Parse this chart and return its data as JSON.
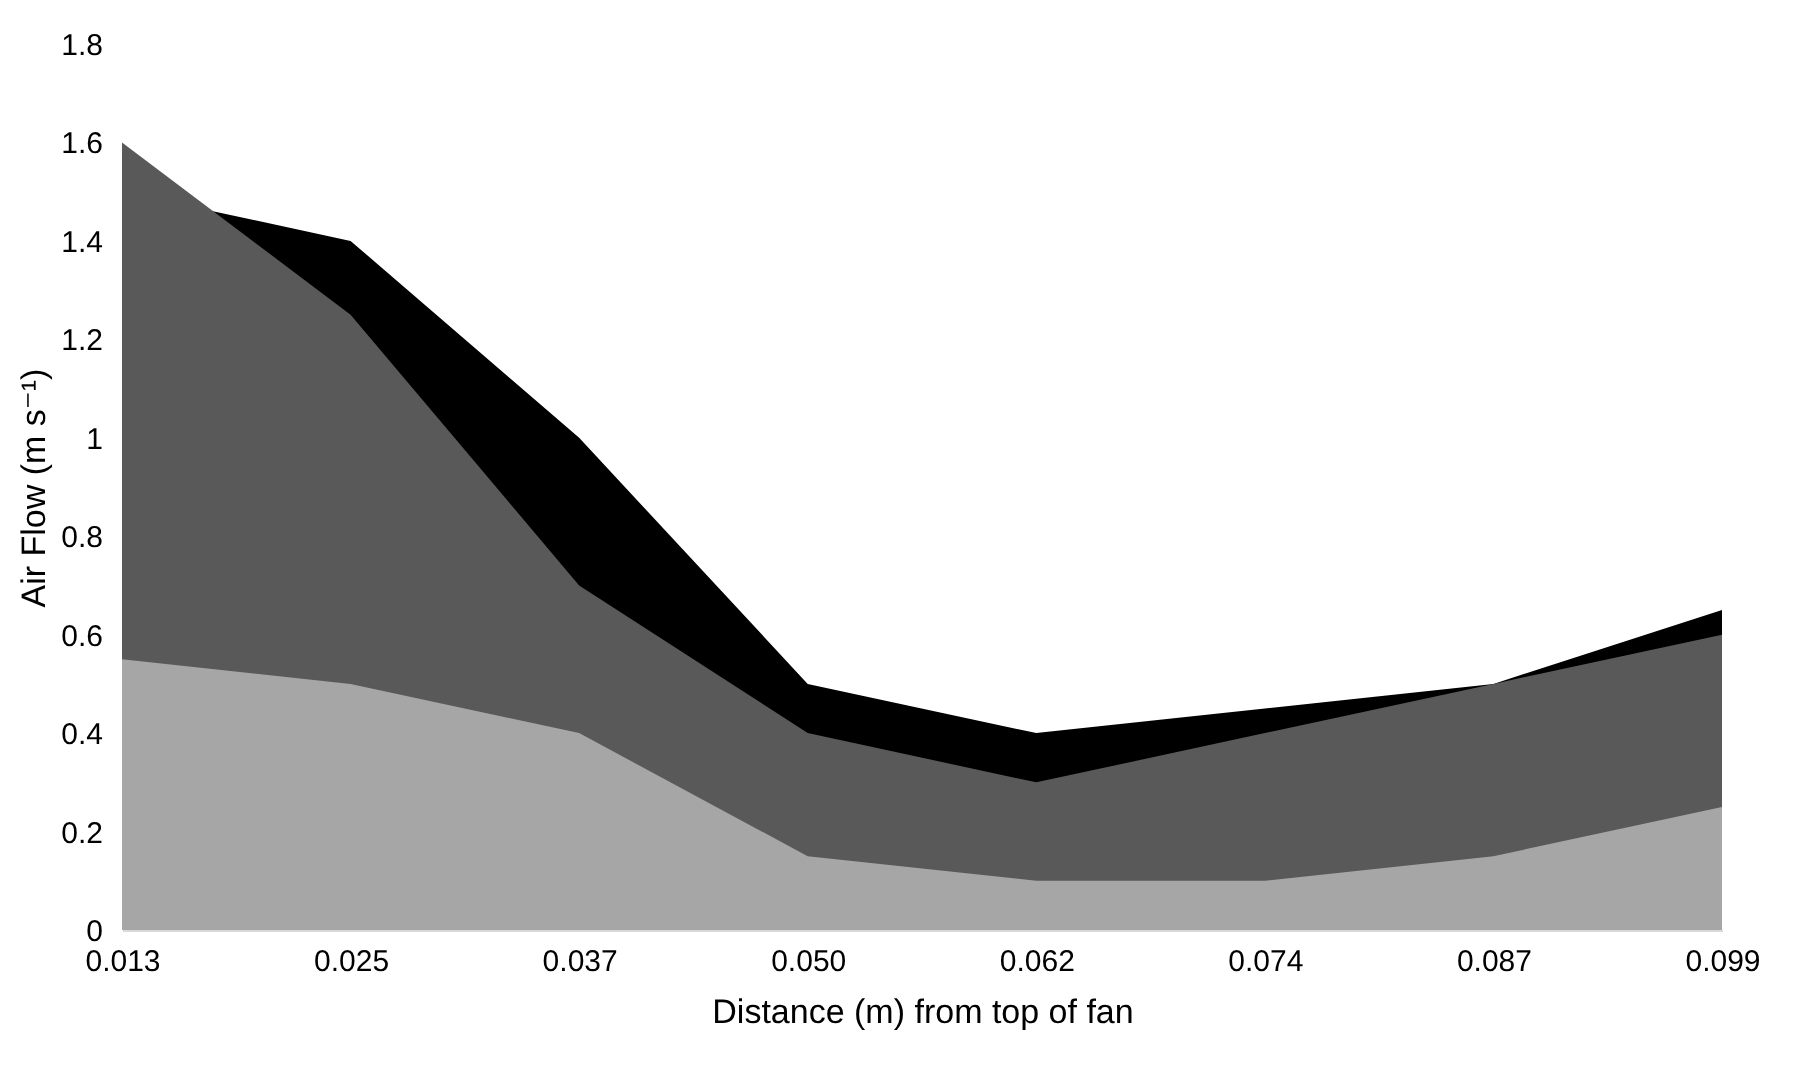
{
  "chart_data": {
    "type": "area",
    "xlabel": "Distance (m) from top of fan",
    "ylabel": "Air Flow (m s⁻¹)",
    "categories": [
      "0.013",
      "0.025",
      "0.037",
      "0.050",
      "0.062",
      "0.074",
      "0.087",
      "0.099"
    ],
    "series": [
      {
        "color": "#000000",
        "values": [
          1.5,
          1.4,
          1.0,
          0.5,
          0.4,
          0.45,
          0.5,
          0.65
        ]
      },
      {
        "color": "#595959",
        "values": [
          1.6,
          1.25,
          0.7,
          0.4,
          0.3,
          0.4,
          0.5,
          0.6
        ]
      },
      {
        "color": "#a6a6a6",
        "values": [
          0.55,
          0.5,
          0.4,
          0.15,
          0.1,
          0.1,
          0.15,
          0.25
        ]
      }
    ],
    "ylim": [
      0,
      1.8
    ],
    "yticks": [
      0,
      0.2,
      0.4,
      0.6,
      0.8,
      1,
      1.2,
      1.4,
      1.6,
      1.8
    ],
    "grid": false,
    "legend": false
  }
}
